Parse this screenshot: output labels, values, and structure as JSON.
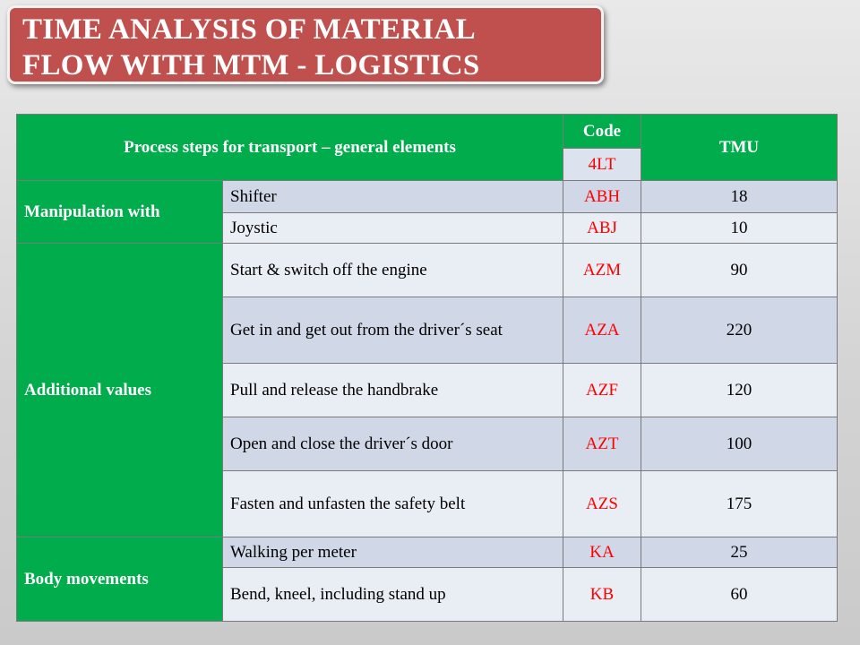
{
  "title": {
    "line1": "TIME ANALYSIS OF MATERIAL",
    "line2": "FLOW WITH MTM - LOGISTICS"
  },
  "table": {
    "header": {
      "process": "Process steps for transport – general elements",
      "code": "Code",
      "code_sub": "4LT",
      "tmu": "TMU"
    },
    "groups": [
      {
        "name": "Manipulation with",
        "rows": [
          {
            "step": "Shifter",
            "code": "ABH",
            "tmu": "18"
          },
          {
            "step": "Joystic",
            "code": "ABJ",
            "tmu": "10"
          }
        ]
      },
      {
        "name": "Additional values",
        "rows": [
          {
            "step": "Start & switch off the engine",
            "code": "AZM",
            "tmu": "90"
          },
          {
            "step": "Get in and get out from the driver´s seat",
            "code": "AZA",
            "tmu": "220"
          },
          {
            "step": "Pull and release the handbrake",
            "code": "AZF",
            "tmu": "120"
          },
          {
            "step": "Open and close the driver´s door",
            "code": "AZT",
            "tmu": "100"
          },
          {
            "step": "Fasten and unfasten the safety belt",
            "code": "AZS",
            "tmu": "175"
          }
        ]
      },
      {
        "name": "Body movements",
        "rows": [
          {
            "step": "Walking per meter",
            "code": "KA",
            "tmu": "25"
          },
          {
            "step": "Bend, kneel, including stand up",
            "code": "KB",
            "tmu": "60"
          }
        ]
      }
    ],
    "colors": {
      "header_bg": "#00ac4c",
      "code_text": "#ff0000",
      "row_dark": "#d0d8e8",
      "row_light": "#e9edf4",
      "title_bg": "#c0504d"
    }
  }
}
